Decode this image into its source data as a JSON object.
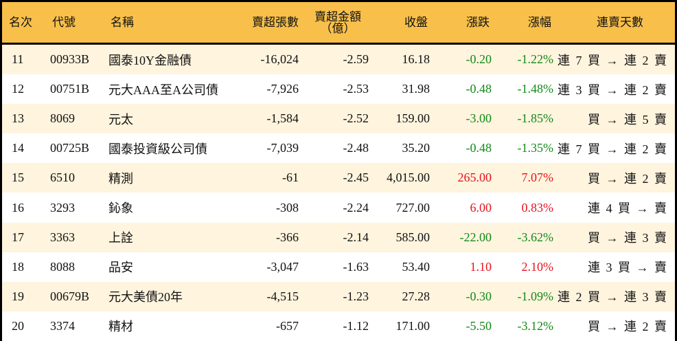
{
  "colors": {
    "header_bg": "#F8C04A",
    "row_odd": "#FFF4DE",
    "row_even": "#FFFFFF",
    "up": "#E8121D",
    "down": "#128A17",
    "border": "#000000"
  },
  "headers": {
    "rank": "名次",
    "code": "代號",
    "name": "名稱",
    "volume": "賣超張數",
    "amount_line1": "賣超金額",
    "amount_line2": "（億）",
    "close": "收盤",
    "change": "漲跌",
    "change_pct": "漲幅",
    "streak": "連賣天數"
  },
  "rows": [
    {
      "rank": "11",
      "code": "00933B",
      "name": "國泰10Y金融債",
      "volume": "-16,024",
      "amount": "-2.59",
      "close": "16.18",
      "change": "-0.20",
      "change_pct": "-1.22%",
      "direction": "down",
      "streak": "連 7 買 → 連 2 賣"
    },
    {
      "rank": "12",
      "code": "00751B",
      "name": "元大AAA至A公司債",
      "volume": "-7,926",
      "amount": "-2.53",
      "close": "31.98",
      "change": "-0.48",
      "change_pct": "-1.48%",
      "direction": "down",
      "streak": "連 3 買 → 連 2 賣"
    },
    {
      "rank": "13",
      "code": "8069",
      "name": "元太",
      "volume": "-1,584",
      "amount": "-2.52",
      "close": "159.00",
      "change": "-3.00",
      "change_pct": "-1.85%",
      "direction": "down",
      "streak": "買 → 連 5 賣"
    },
    {
      "rank": "14",
      "code": "00725B",
      "name": "國泰投資級公司債",
      "volume": "-7,039",
      "amount": "-2.48",
      "close": "35.20",
      "change": "-0.48",
      "change_pct": "-1.35%",
      "direction": "down",
      "streak": "連 7 買 → 連 2 賣"
    },
    {
      "rank": "15",
      "code": "6510",
      "name": "精測",
      "volume": "-61",
      "amount": "-2.45",
      "close": "4,015.00",
      "change": "265.00",
      "change_pct": "7.07%",
      "direction": "up",
      "streak": "買 → 連 2 賣"
    },
    {
      "rank": "16",
      "code": "3293",
      "name": "鈊象",
      "volume": "-308",
      "amount": "-2.24",
      "close": "727.00",
      "change": "6.00",
      "change_pct": "0.83%",
      "direction": "up",
      "streak": "連 4 買 → 賣"
    },
    {
      "rank": "17",
      "code": "3363",
      "name": "上詮",
      "volume": "-366",
      "amount": "-2.14",
      "close": "585.00",
      "change": "-22.00",
      "change_pct": "-3.62%",
      "direction": "down",
      "streak": "買 → 連 3 賣"
    },
    {
      "rank": "18",
      "code": "8088",
      "name": "品安",
      "volume": "-3,047",
      "amount": "-1.63",
      "close": "53.40",
      "change": "1.10",
      "change_pct": "2.10%",
      "direction": "up",
      "streak": "連 3 買 → 賣"
    },
    {
      "rank": "19",
      "code": "00679B",
      "name": "元大美債20年",
      "volume": "-4,515",
      "amount": "-1.23",
      "close": "27.28",
      "change": "-0.30",
      "change_pct": "-1.09%",
      "direction": "down",
      "streak": "連 2 買 → 連 3 賣"
    },
    {
      "rank": "20",
      "code": "3374",
      "name": "精材",
      "volume": "-657",
      "amount": "-1.12",
      "close": "171.00",
      "change": "-5.50",
      "change_pct": "-3.12%",
      "direction": "down",
      "streak": "買 → 連 2 賣"
    }
  ]
}
